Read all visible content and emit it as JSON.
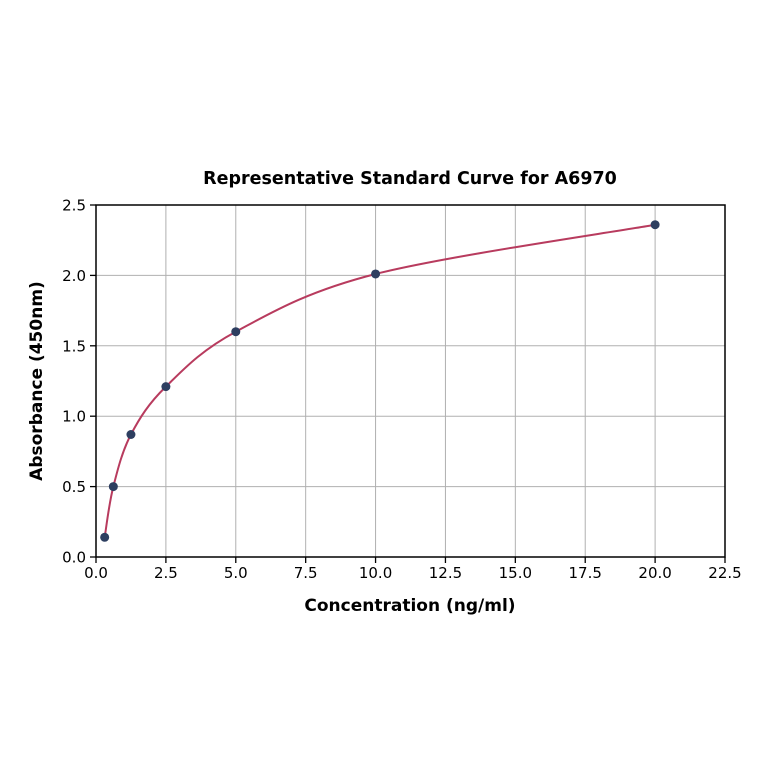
{
  "chart_data": {
    "type": "scatter",
    "title": "Representative Standard Curve for A6970",
    "xlabel": "Concentration (ng/ml)",
    "ylabel": "Absorbance (450nm)",
    "x": [
      0.31,
      0.62,
      1.25,
      2.5,
      5.0,
      10.0,
      20.0
    ],
    "y": [
      0.14,
      0.5,
      0.87,
      1.21,
      1.6,
      2.01,
      2.36
    ],
    "fit_curve": "smooth saturating curve passing through all data points, drawn from first point to last point",
    "xlim": [
      0,
      22.5
    ],
    "ylim": [
      0,
      2.5
    ],
    "xtick_labels": [
      "0.0",
      "2.5",
      "5.0",
      "7.5",
      "10.0",
      "12.5",
      "15.0",
      "17.5",
      "20.0",
      "22.5"
    ],
    "ytick_labels": [
      "0.0",
      "0.5",
      "1.0",
      "1.5",
      "2.0",
      "2.5"
    ],
    "grid": true,
    "legend": "none",
    "colors": {
      "line": "#b83b5e",
      "marker": "#2d3e60",
      "grid": "#b0b0b0",
      "spine": "#000000",
      "background": "#ffffff",
      "text": "#000000"
    }
  }
}
